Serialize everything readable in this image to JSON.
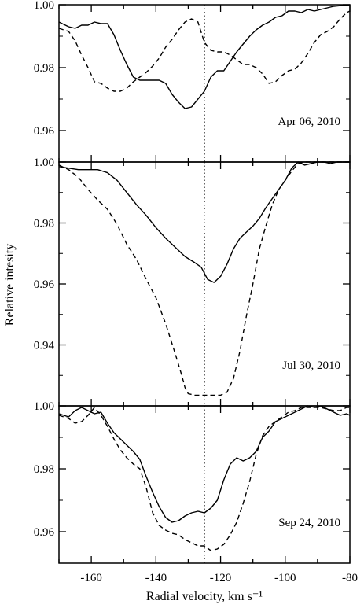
{
  "chart_data": {
    "type": "line",
    "xlabel": "Radial velocity, km s⁻¹",
    "ylabel": "Relative intesity",
    "xlim": [
      -170,
      -80
    ],
    "x_ticks": [
      -160,
      -140,
      -120,
      -100,
      -80
    ],
    "reference_line_x": -125,
    "line_color": "#000000",
    "panels": [
      {
        "label": "Apr 06, 2010",
        "ylim": [
          0.95,
          1.0
        ],
        "y_ticks": [
          0.96,
          0.98,
          1.0
        ],
        "y_tick_labels": [
          "0.96",
          "0.98",
          "1.00"
        ],
        "series": [
          {
            "style": "solid",
            "x": [
              -170,
              -167,
              -165,
              -163,
              -161,
              -159,
              -157,
              -155,
              -153,
              -151,
              -149,
              -147,
              -145,
              -143,
              -141,
              -139,
              -137,
              -135,
              -133,
              -131,
              -129,
              -127,
              -125,
              -123,
              -121,
              -119,
              -117,
              -115,
              -113,
              -111,
              -109,
              -107,
              -105,
              -103,
              -101,
              -99,
              -97,
              -95,
              -93,
              -91,
              -89,
              -87,
              -85,
              -83,
              -81,
              -80
            ],
            "y": [
              0.9945,
              0.993,
              0.9925,
              0.9935,
              0.9935,
              0.9945,
              0.994,
              0.994,
              0.9905,
              0.9855,
              0.981,
              0.977,
              0.976,
              0.976,
              0.976,
              0.976,
              0.975,
              0.9715,
              0.969,
              0.967,
              0.9675,
              0.97,
              0.9725,
              0.977,
              0.979,
              0.979,
              0.982,
              0.985,
              0.9875,
              0.99,
              0.992,
              0.9935,
              0.9945,
              0.996,
              0.9965,
              0.998,
              0.998,
              0.9975,
              0.9985,
              0.998,
              0.9985,
              0.999,
              0.9995,
              0.9997,
              0.9998,
              1.0
            ]
          },
          {
            "style": "dashed",
            "x": [
              -170,
              -167,
              -165,
              -163,
              -161,
              -159,
              -157,
              -155,
              -153,
              -151,
              -149,
              -147,
              -145,
              -143,
              -141,
              -139,
              -137,
              -135,
              -133,
              -131,
              -129,
              -127,
              -125,
              -123,
              -121,
              -119,
              -117,
              -115,
              -113,
              -111,
              -109,
              -107,
              -105,
              -103,
              -101,
              -99,
              -97,
              -95,
              -93,
              -91,
              -89,
              -87,
              -85,
              -83,
              -81,
              -80
            ],
            "y": [
              0.9925,
              0.9915,
              0.9885,
              0.984,
              0.98,
              0.9755,
              0.975,
              0.9735,
              0.9725,
              0.9725,
              0.9735,
              0.9755,
              0.977,
              0.9785,
              0.9805,
              0.983,
              0.9865,
              0.989,
              0.992,
              0.9945,
              0.9955,
              0.9945,
              0.988,
              0.9855,
              0.985,
              0.985,
              0.984,
              0.9825,
              0.981,
              0.981,
              0.98,
              0.978,
              0.975,
              0.9755,
              0.9775,
              0.979,
              0.9795,
              0.9815,
              0.9845,
              0.988,
              0.9905,
              0.9915,
              0.993,
              0.9955,
              0.9975,
              0.998
            ]
          }
        ]
      },
      {
        "label": "Jul 30, 2010",
        "ylim": [
          0.92,
          1.0
        ],
        "y_ticks": [
          0.94,
          0.96,
          0.98,
          1.0
        ],
        "y_tick_labels": [
          "0.94",
          "0.96",
          "0.98",
          "1.00"
        ],
        "series": [
          {
            "style": "solid",
            "x": [
              -170,
              -167,
              -164,
              -161,
              -158,
              -155,
              -152,
              -149,
              -146,
              -143,
              -140,
              -137,
              -134,
              -131,
              -128,
              -126,
              -124,
              -122,
              -120,
              -118,
              -116,
              -114,
              -112,
              -110,
              -108,
              -106,
              -104,
              -102,
              -100,
              -98,
              -96,
              -94,
              -92,
              -90,
              -88,
              -86,
              -84,
              -82,
              -80
            ],
            "y": [
              0.9985,
              0.998,
              0.9975,
              0.9975,
              0.9975,
              0.9965,
              0.994,
              0.99,
              0.986,
              0.9825,
              0.9785,
              0.975,
              0.972,
              0.969,
              0.967,
              0.9655,
              0.9615,
              0.9605,
              0.9625,
              0.9665,
              0.9715,
              0.975,
              0.977,
              0.979,
              0.9815,
              0.985,
              0.988,
              0.991,
              0.994,
              0.998,
              1.0,
              0.999,
              0.9995,
              1.0,
              1.0,
              0.9995,
              1.0,
              1.0,
              1.0
            ]
          },
          {
            "style": "dashed",
            "x": [
              -170,
              -167,
              -164,
              -161,
              -158,
              -155,
              -152,
              -149,
              -146,
              -143,
              -140,
              -137,
              -134,
              -132,
              -131,
              -130,
              -128,
              -126,
              -124,
              -122,
              -120,
              -118,
              -116,
              -114,
              -112,
              -110,
              -108,
              -106,
              -104,
              -102,
              -100,
              -98,
              -96,
              -94,
              -92,
              -90,
              -88,
              -86,
              -84,
              -82,
              -80
            ],
            "y": [
              0.999,
              0.9975,
              0.995,
              0.991,
              0.9875,
              0.9845,
              0.9795,
              0.973,
              0.968,
              0.9615,
              0.9555,
              0.947,
              0.937,
              0.93,
              0.926,
              0.924,
              0.9235,
              0.9235,
              0.9235,
              0.9235,
              0.9235,
              0.9245,
              0.929,
              0.938,
              0.9495,
              0.96,
              0.9715,
              0.979,
              0.986,
              0.991,
              0.994,
              0.997,
              0.9995,
              1.0,
              1.0,
              1.0,
              1.0,
              1.0,
              1.0,
              1.0,
              1.0
            ]
          }
        ]
      },
      {
        "label": "Sep 24, 2010",
        "ylim": [
          0.95,
          1.0
        ],
        "y_ticks": [
          0.96,
          0.98,
          1.0
        ],
        "y_tick_labels": [
          "0.96",
          "0.98",
          "1.00"
        ],
        "series": [
          {
            "style": "solid",
            "x": [
              -170,
              -167,
              -165,
              -163,
              -161,
              -159,
              -157,
              -155,
              -153,
              -151,
              -149,
              -147,
              -145,
              -143,
              -141,
              -139,
              -137,
              -135,
              -133,
              -131,
              -129,
              -127,
              -125,
              -123,
              -121,
              -119,
              -117,
              -115,
              -113,
              -111,
              -109,
              -107,
              -105,
              -103,
              -101,
              -99,
              -97,
              -95,
              -93,
              -91,
              -89,
              -87,
              -85,
              -83,
              -81,
              -80
            ],
            "y": [
              0.9975,
              0.9965,
              0.9985,
              0.9995,
              0.9985,
              0.9975,
              0.998,
              0.9945,
              0.9915,
              0.9895,
              0.9875,
              0.9855,
              0.983,
              0.9775,
              0.9725,
              0.968,
              0.9645,
              0.963,
              0.9635,
              0.965,
              0.966,
              0.9665,
              0.966,
              0.9675,
              0.97,
              0.9765,
              0.9815,
              0.9835,
              0.9825,
              0.9835,
              0.9855,
              0.99,
              0.992,
              0.995,
              0.996,
              0.997,
              0.998,
              0.999,
              1.0,
              0.9995,
              1.0,
              0.999,
              0.998,
              0.997,
              0.9975,
              0.997
            ]
          },
          {
            "style": "dashed",
            "x": [
              -170,
              -167,
              -165,
              -163,
              -161,
              -159,
              -157,
              -155,
              -153,
              -151,
              -149,
              -147,
              -145,
              -143,
              -141,
              -139,
              -137,
              -135,
              -133,
              -131,
              -129,
              -127,
              -125,
              -123,
              -121,
              -119,
              -117,
              -115,
              -113,
              -111,
              -109,
              -107,
              -105,
              -103,
              -101,
              -99,
              -97,
              -95,
              -93,
              -91,
              -89,
              -87,
              -85,
              -83,
              -81,
              -80
            ],
            "y": [
              0.997,
              0.996,
              0.9945,
              0.995,
              0.997,
              0.9995,
              0.997,
              0.9935,
              0.9895,
              0.986,
              0.9835,
              0.9815,
              0.98,
              0.974,
              0.966,
              0.962,
              0.9605,
              0.9595,
              0.959,
              0.9575,
              0.9565,
              0.9555,
              0.9555,
              0.954,
              0.9545,
              0.956,
              0.959,
              0.963,
              0.969,
              0.976,
              0.9845,
              0.9905,
              0.9935,
              0.995,
              0.9965,
              0.998,
              0.9985,
              0.9995,
              0.9995,
              0.9995,
              0.9995,
              0.999,
              0.9985,
              0.9985,
              0.9995,
              0.9995
            ]
          }
        ]
      }
    ]
  }
}
